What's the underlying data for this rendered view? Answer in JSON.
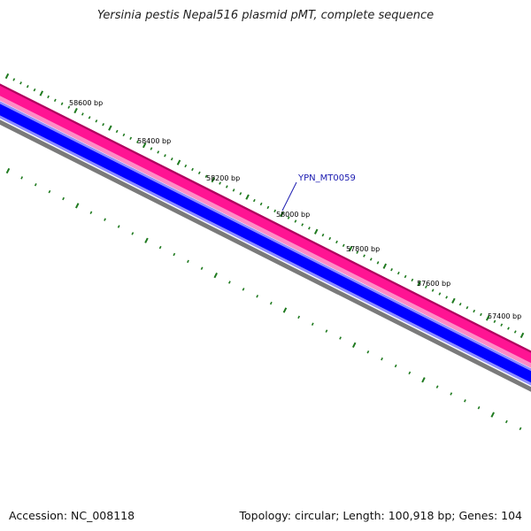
{
  "title": "Yersinia pestis Nepal516 plasmid pMT, complete sequence",
  "footer": {
    "accession": "Accession: NC_008118",
    "summary": "Topology: circular; Length: 100,918 bp; Genes: 104"
  },
  "colors": {
    "tick": "#1f7a1f",
    "pink_dark": "#b0005e",
    "pink": "#ff1493",
    "pink_light": "#ff8cc6",
    "blue_light": "#8c8cff",
    "blue": "#0000ff",
    "gray": "#7a7a7a",
    "gene_label": "#1a1ab0"
  },
  "position_labels": [
    "58600 bp",
    "58400 bp",
    "58200 bp",
    "58000 bp",
    "57800 bp",
    "57600 bp",
    "57400 bp"
  ],
  "gene_label": "YPN_MT0059"
}
